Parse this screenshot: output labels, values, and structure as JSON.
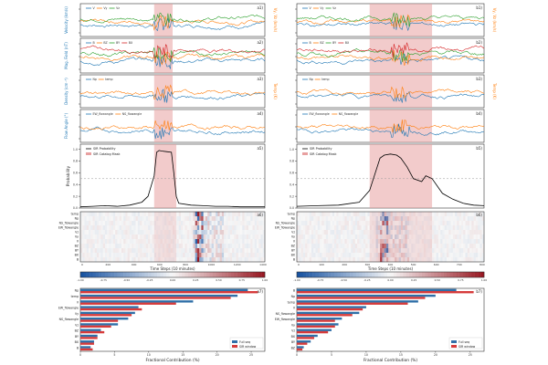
{
  "colors": {
    "blue": "#1f77b4",
    "orange": "#ff7f0e",
    "green": "#2ca02c",
    "red": "#d62728",
    "purple": "#9467bd",
    "brown": "#8c564b",
    "shade": "#e8a0a0",
    "bar_full": "#2f6fa8",
    "bar_sir": "#d63b3b"
  },
  "chart_data": [
    {
      "id": "a1",
      "type": "line",
      "panel_label": "a1)",
      "ylabel": "Velocity (km/s)",
      "ylabel_right": "Vy, Vz (km/s)",
      "legend": [
        "V",
        "Vy",
        "Vz"
      ],
      "legend_placement": "top-left",
      "shade": [
        600,
        750
      ],
      "series": [
        {
          "name": "V",
          "color": "blue",
          "x": [
            0,
            100,
            200,
            300,
            400,
            500,
            600,
            650,
            700,
            750,
            800,
            900,
            1000,
            1100,
            1200,
            1300,
            1400,
            1500
          ],
          "y": [
            0.55,
            0.6,
            0.62,
            0.6,
            0.58,
            0.5,
            0.45,
            0.3,
            0.35,
            0.4,
            0.5,
            0.65,
            0.75,
            0.8,
            0.78,
            0.7,
            0.6,
            0.55
          ]
        },
        {
          "name": "Vy",
          "color": "orange",
          "x": [
            0,
            100,
            200,
            300,
            400,
            500,
            600,
            650,
            700,
            750,
            800,
            900,
            1000,
            1100,
            1200,
            1300,
            1400,
            1500
          ],
          "y": [
            0.3,
            0.35,
            0.45,
            0.4,
            0.35,
            0.5,
            0.9,
            0.95,
            0.85,
            0.7,
            0.6,
            0.65,
            0.55,
            0.5,
            0.55,
            0.6,
            0.55,
            0.5
          ]
        }
      ]
    },
    {
      "id": "a2",
      "type": "line",
      "panel_label": "a2)",
      "ylabel": "Mag. Field (nT)",
      "legend": [
        "B",
        "BZ",
        "BY",
        "BX"
      ],
      "legend_placement": "top-left",
      "shade": [
        600,
        750
      ]
    },
    {
      "id": "a3",
      "type": "line",
      "panel_label": "a3)",
      "ylabel": "Density (cm⁻³)",
      "ylabel_right": "Temp (K)",
      "legend": [
        "Np",
        "temp"
      ],
      "legend_placement": "top-left",
      "shade": [
        600,
        750
      ]
    },
    {
      "id": "a4",
      "type": "line",
      "panel_label": "a4)",
      "ylabel": "Flow Angle (°)",
      "legend": [
        "EW_flowangle",
        "NS_flowangle"
      ],
      "legend_placement": "top-left",
      "shade": [
        600,
        750
      ]
    },
    {
      "id": "a5",
      "type": "line",
      "panel_label": "a5)",
      "ylabel": "Probability",
      "ylim": [
        0,
        1.0
      ],
      "yticks": [
        "0.0",
        "0.2",
        "0.4",
        "0.6",
        "0.8",
        "1.0"
      ],
      "legend": [
        "SIR Probability",
        "SIR Catalog Mask"
      ],
      "legend_placement": "top-left",
      "shade": [
        600,
        780
      ],
      "threshold": 0.5,
      "series": [
        {
          "name": "SIR Probability",
          "color": "black",
          "x": [
            0,
            100,
            200,
            300,
            400,
            500,
            550,
            600,
            620,
            640,
            660,
            700,
            740,
            760,
            780,
            800,
            900,
            1000,
            1100,
            1200,
            1300,
            1400,
            1500
          ],
          "y": [
            0.02,
            0.03,
            0.04,
            0.03,
            0.05,
            0.1,
            0.2,
            0.55,
            0.95,
            0.98,
            0.97,
            0.96,
            0.95,
            0.6,
            0.2,
            0.08,
            0.05,
            0.04,
            0.03,
            0.03,
            0.02,
            0.02,
            0.02
          ]
        }
      ]
    },
    {
      "id": "a6",
      "type": "heatmap",
      "panel_label": "a6)",
      "xlabel": "Time Steps (10 minutes)",
      "xticks": [
        "0",
        "200",
        "400",
        "600",
        "800",
        "1000",
        "1200",
        "1400"
      ],
      "rows": [
        "temp",
        "Np",
        "NS_flowangle",
        "EW_flowangle",
        "Vz",
        "Vy",
        "V",
        "BZ",
        "BY",
        "BX",
        "B"
      ],
      "colorbar_ticks": [
        "-1.00",
        "-0.75",
        "-0.50",
        "-0.25",
        "0.00",
        "0.25",
        "0.50",
        "0.75",
        "1.00"
      ]
    },
    {
      "id": "a7",
      "type": "bar",
      "panel_label": "a7)",
      "orientation": "horizontal",
      "xlabel": "Fractional Contribution (%)",
      "xticks": [
        "0",
        "5",
        "10",
        "15",
        "20",
        "25"
      ],
      "xlim": [
        0,
        27
      ],
      "legend": [
        "Full seq",
        "SIR window"
      ],
      "legend_placement": "lower-right",
      "categories": [
        "Np",
        "temp",
        "V",
        "EW_flowangle",
        "Vy",
        "NS_flowangle",
        "Vz",
        "BZ",
        "BY",
        "BX",
        "B"
      ],
      "series": [
        {
          "name": "Full seq",
          "color": "bar_full",
          "values": [
            24.5,
            23.0,
            16.5,
            8.5,
            8.0,
            7.0,
            5.5,
            3.0,
            2.5,
            2.0,
            1.5
          ]
        },
        {
          "name": "SIR window",
          "color": "bar_sir",
          "values": [
            26.0,
            22.0,
            14.0,
            9.0,
            7.5,
            5.5,
            4.5,
            3.5,
            2.5,
            2.0,
            1.8
          ]
        }
      ]
    },
    {
      "id": "b1",
      "type": "line",
      "panel_label": "b1)",
      "ylabel_right": "Vy, Vz (km/s)",
      "legend": [
        "V",
        "Vy",
        "Vz"
      ],
      "legend_placement": "top-left",
      "shade": [
        350,
        650
      ]
    },
    {
      "id": "b2",
      "type": "line",
      "panel_label": "b2)",
      "legend": [
        "B",
        "BZ",
        "BY",
        "BX"
      ],
      "legend_placement": "top-left",
      "shade": [
        350,
        650
      ]
    },
    {
      "id": "b3",
      "type": "line",
      "panel_label": "b3)",
      "ylabel_right": "Temp (K)",
      "legend": [
        "Np",
        "temp"
      ],
      "legend_placement": "top-left",
      "shade": [
        350,
        650
      ]
    },
    {
      "id": "b4",
      "type": "line",
      "panel_label": "b4)",
      "legend": [
        "EW_flowangle",
        "NS_flowangle"
      ],
      "legend_placement": "top-left",
      "shade": [
        350,
        650
      ]
    },
    {
      "id": "b5",
      "type": "line",
      "panel_label": "b5)",
      "ylim": [
        0,
        1.0
      ],
      "yticks": [
        "0.0",
        "0.2",
        "0.4",
        "0.6",
        "0.8",
        "1.0"
      ],
      "legend": [
        "SIR Probability",
        "SIR Catalog Mask"
      ],
      "legend_placement": "top-left",
      "shade": [
        350,
        650
      ],
      "threshold": 0.5,
      "series": [
        {
          "name": "SIR Probability",
          "color": "black",
          "x": [
            0,
            100,
            200,
            300,
            350,
            400,
            420,
            450,
            480,
            500,
            530,
            560,
            600,
            620,
            650,
            680,
            700,
            750,
            800,
            850,
            900
          ],
          "y": [
            0.03,
            0.04,
            0.05,
            0.1,
            0.3,
            0.85,
            0.9,
            0.92,
            0.9,
            0.85,
            0.7,
            0.5,
            0.45,
            0.55,
            0.5,
            0.35,
            0.25,
            0.15,
            0.08,
            0.05,
            0.04
          ]
        }
      ]
    },
    {
      "id": "b6",
      "type": "heatmap",
      "panel_label": "b6)",
      "xlabel": "Time Steps (10 minutes)",
      "xticks": [
        "0",
        "100",
        "200",
        "300",
        "400",
        "500",
        "600",
        "700",
        "800"
      ],
      "rows": [
        "temp",
        "Np",
        "NS_flowangle",
        "EW_flowangle",
        "Vz",
        "Vy",
        "V",
        "BZ",
        "BY",
        "BX",
        "B"
      ],
      "colorbar_ticks": [
        "-1.00",
        "-0.75",
        "-0.50",
        "-0.25",
        "0.00",
        "0.25",
        "0.50",
        "0.75",
        "1.00"
      ]
    },
    {
      "id": "b7",
      "type": "bar",
      "panel_label": "b7)",
      "orientation": "horizontal",
      "xlabel": "Fractional Contribution (%)",
      "xticks": [
        "0",
        "5",
        "10",
        "15",
        "20",
        "25"
      ],
      "xlim": [
        0,
        27
      ],
      "legend": [
        "Full seq",
        "SIR window"
      ],
      "legend_placement": "lower-right",
      "categories": [
        "B",
        "Np",
        "temp",
        "V",
        "NS_flowangle",
        "EW_flowangle",
        "Vy",
        "Vz",
        "BX",
        "BY",
        "BZ"
      ],
      "series": [
        {
          "name": "Full seq",
          "color": "bar_full",
          "values": [
            23.0,
            20.0,
            17.5,
            10.0,
            9.0,
            6.5,
            6.0,
            5.0,
            3.0,
            2.0,
            1.0
          ]
        },
        {
          "name": "SIR window",
          "color": "bar_sir",
          "values": [
            25.5,
            18.5,
            16.0,
            9.5,
            8.0,
            5.5,
            5.5,
            4.5,
            2.5,
            1.5,
            0.8
          ]
        }
      ]
    }
  ]
}
